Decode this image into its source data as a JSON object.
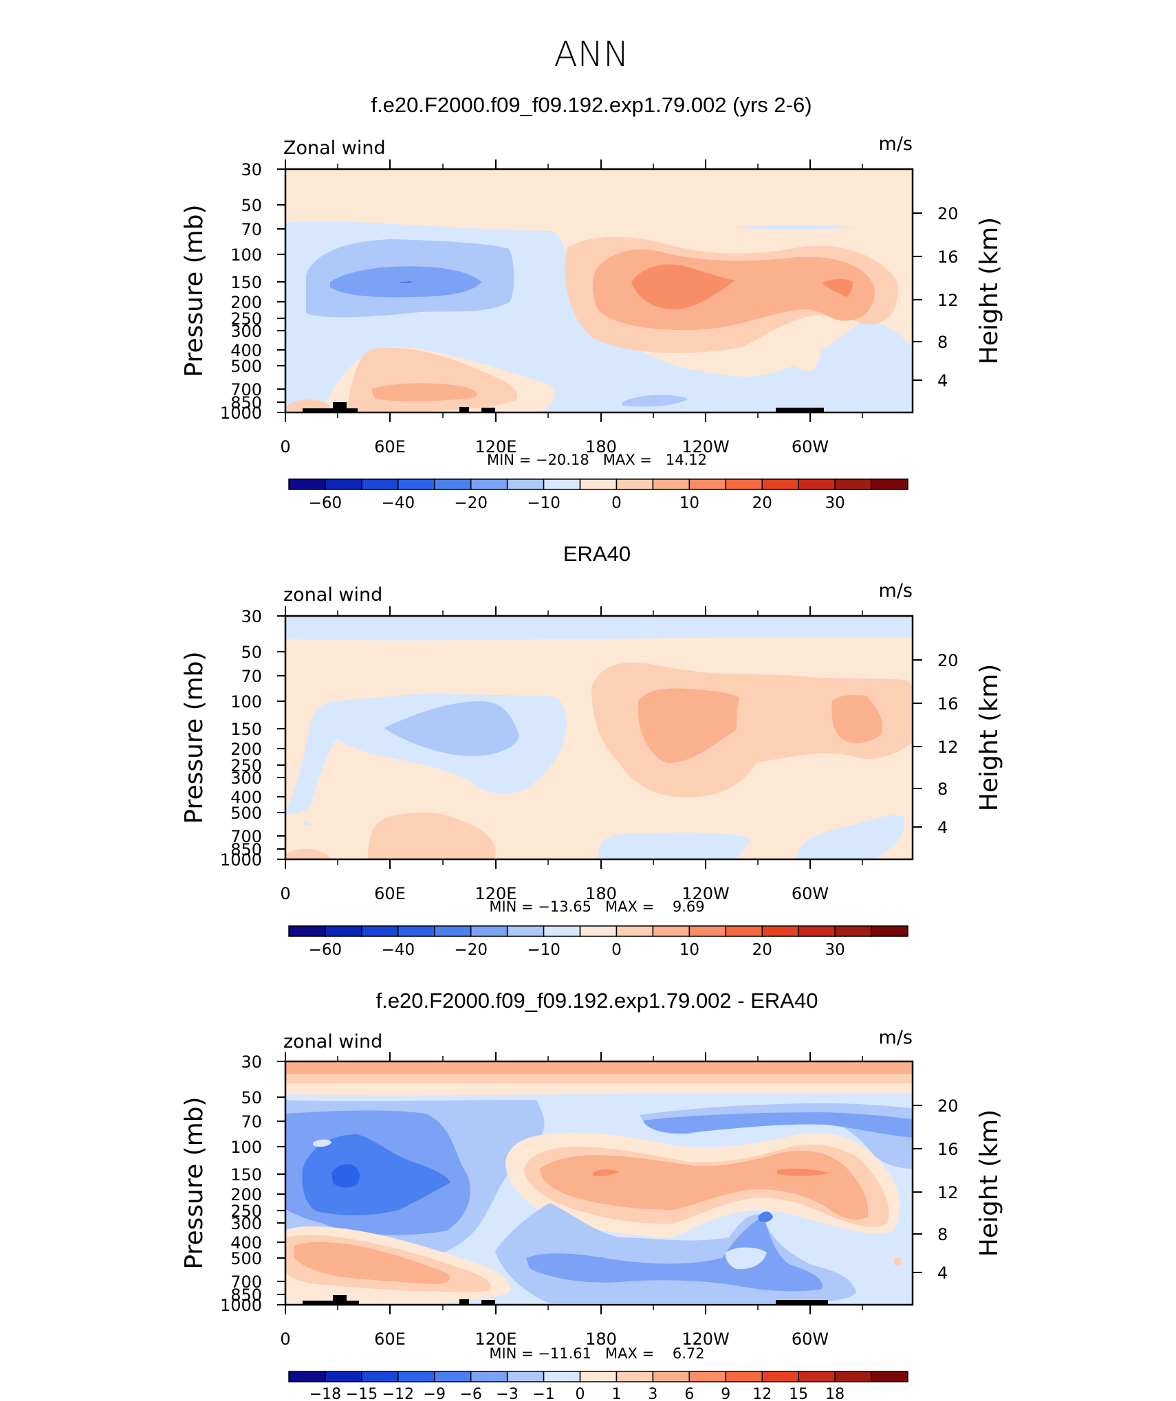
{
  "title": "ANN",
  "colorbar_std": {
    "colors": [
      "#0a0a8a",
      "#0a24b8",
      "#1846d8",
      "#2a62ea",
      "#4a80ef",
      "#7ba2f4",
      "#aec8fa",
      "#d7e7fd",
      "#fde8d6",
      "#fdd0b6",
      "#fbb08e",
      "#f98e66",
      "#f46a3e",
      "#e64120",
      "#c8281c",
      "#9e1a12",
      "#780808"
    ],
    "labels": [
      "−60",
      "−40",
      "−20",
      "−10",
      "0",
      "10",
      "20",
      "30"
    ]
  },
  "colorbar_diff": {
    "colors": [
      "#0a0a8a",
      "#0a24b8",
      "#1846d8",
      "#2a62ea",
      "#4a80ef",
      "#7ba2f4",
      "#aec8fa",
      "#d7e7fd",
      "#fde8d6",
      "#fdd0b6",
      "#fbb08e",
      "#f98e66",
      "#f46a3e",
      "#e64120",
      "#c8281c",
      "#9e1a12",
      "#780808"
    ],
    "labels": [
      "−18",
      "−15",
      "−12",
      "−9",
      "−6",
      "−3",
      "−1",
      "0",
      "1",
      "3",
      "6",
      "9",
      "12",
      "15",
      "18"
    ]
  },
  "chart_data": [
    {
      "type": "heatmap",
      "title": "f.e20.F2000.f09_f09.192.exp1.79.002 (yrs 2-6)",
      "left_label": "Zonal wind",
      "units": "m/s",
      "ylabel": "Pressure (mb)",
      "ylabel_right": "Height (km)",
      "yticks": [
        "30",
        "50",
        "70",
        "100",
        "150",
        "200",
        "250",
        "300",
        "400",
        "500",
        "700",
        "850",
        "1000"
      ],
      "yticks_right": [
        "20",
        "16",
        "12",
        "8",
        "4"
      ],
      "xticks": [
        "0",
        "60E",
        "120E",
        "180",
        "120W",
        "60W"
      ],
      "stats": "MIN = −20.18   MAX =   14.12",
      "min": -20.18,
      "max": 14.12
    },
    {
      "type": "heatmap",
      "title": "ERA40",
      "left_label": "zonal wind",
      "units": "m/s",
      "ylabel": "Pressure (mb)",
      "ylabel_right": "Height (km)",
      "yticks": [
        "30",
        "50",
        "70",
        "100",
        "150",
        "200",
        "250",
        "300",
        "400",
        "500",
        "700",
        "850",
        "1000"
      ],
      "yticks_right": [
        "20",
        "16",
        "12",
        "8",
        "4"
      ],
      "xticks": [
        "0",
        "60E",
        "120E",
        "180",
        "120W",
        "60W"
      ],
      "stats": "MIN = −13.65   MAX =    9.69",
      "min": -13.65,
      "max": 9.69
    },
    {
      "type": "heatmap",
      "title": "f.e20.F2000.f09_f09.192.exp1.79.002 - ERA40",
      "left_label": "zonal wind",
      "units": "m/s",
      "ylabel": "Pressure (mb)",
      "ylabel_right": "Height (km)",
      "yticks": [
        "30",
        "50",
        "70",
        "100",
        "150",
        "200",
        "250",
        "300",
        "400",
        "500",
        "700",
        "850",
        "1000"
      ],
      "yticks_right": [
        "20",
        "16",
        "12",
        "8",
        "4"
      ],
      "xticks": [
        "0",
        "60E",
        "120E",
        "180",
        "120W",
        "60W"
      ],
      "stats": "MIN = −11.61   MAX =    6.72",
      "min": -11.61,
      "max": 6.72
    }
  ]
}
